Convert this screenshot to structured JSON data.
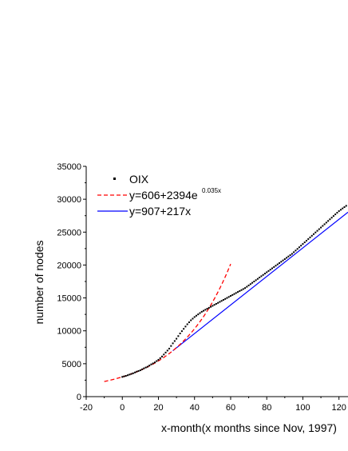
{
  "chart_data": {
    "type": "line",
    "xlabel": "x-month(x months since Nov, 1997)",
    "ylabel": "number of nodes",
    "xlim": [
      -20,
      125
    ],
    "ylim": [
      0,
      35000
    ],
    "x_ticks": [
      -20,
      0,
      20,
      40,
      60,
      80,
      100,
      120
    ],
    "y_ticks": [
      0,
      5000,
      10000,
      15000,
      20000,
      25000,
      30000,
      35000
    ],
    "grid": false,
    "legend_position": "top-left",
    "colors": {
      "observed": "#000000",
      "exponential_fit": "#ff0000",
      "linear_fit": "#0000ff"
    },
    "series": [
      {
        "name": "OIX",
        "kind": "scatter",
        "x": [
          0,
          2,
          4,
          6,
          8,
          10,
          12,
          14,
          16,
          18,
          20,
          22,
          24,
          26,
          28,
          30,
          32,
          34,
          36,
          38,
          40,
          42,
          44,
          46,
          48,
          50,
          52,
          54,
          56,
          58,
          60,
          62,
          64,
          66,
          68,
          70,
          72,
          74,
          76,
          78,
          80,
          82,
          84,
          86,
          88,
          90,
          92,
          94,
          96,
          98,
          100,
          102,
          104,
          106,
          108,
          110,
          112,
          114,
          116,
          118,
          120,
          122,
          124
        ],
        "y": [
          3000,
          3150,
          3350,
          3550,
          3800,
          4000,
          4300,
          4550,
          4900,
          5200,
          5600,
          6100,
          6700,
          7300,
          8100,
          8800,
          9600,
          10300,
          11000,
          11600,
          12100,
          12500,
          12900,
          13200,
          13500,
          13800,
          14100,
          14400,
          14700,
          15000,
          15300,
          15600,
          15900,
          16200,
          16500,
          16900,
          17300,
          17700,
          18100,
          18500,
          18900,
          19300,
          19700,
          20100,
          20500,
          20900,
          21300,
          21700,
          22200,
          22700,
          23200,
          23700,
          24200,
          24700,
          25200,
          25700,
          26200,
          26700,
          27200,
          27700,
          28200,
          28600,
          29000
        ]
      },
      {
        "name": "y=606+2394e",
        "superscript": "0.035x",
        "kind": "dashed-line",
        "formula": {
          "a": 606,
          "b": 2394,
          "k": 0.035
        },
        "x_range": [
          -10,
          60
        ]
      },
      {
        "name": "y=907+217x",
        "kind": "line",
        "formula": {
          "intercept": 907,
          "slope": 217
        },
        "x_range": [
          28,
          125
        ]
      }
    ]
  }
}
